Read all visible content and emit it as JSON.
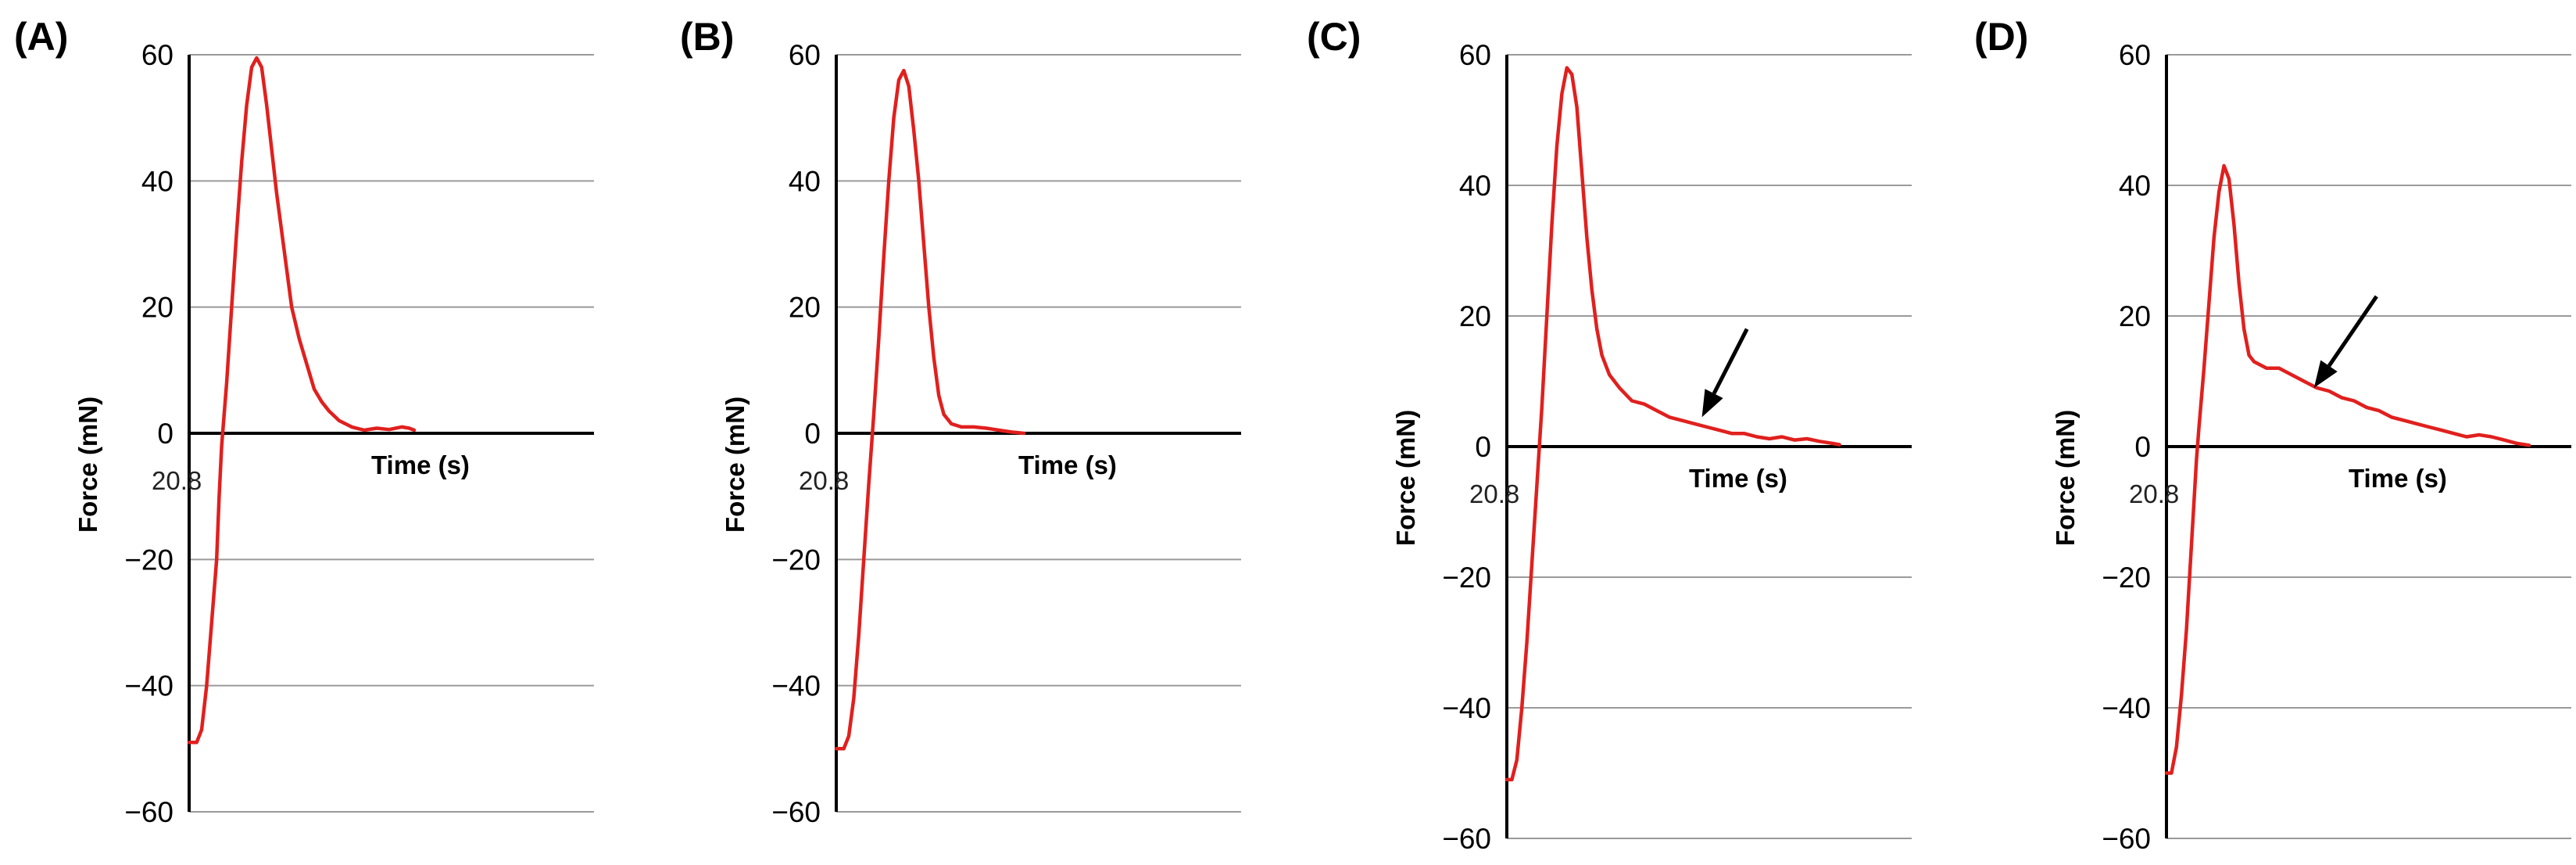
{
  "colors": {
    "series": "#e0201e",
    "grid": "#9a9a9a",
    "axis": "#000000",
    "arrow": "#000000"
  },
  "chart_data": [
    {
      "type": "line",
      "panel_label": "(A)",
      "xlabel": "Time (s)",
      "ylabel": "Force (mN)",
      "x_start_label": "20.8",
      "yticks": [
        60,
        40,
        20,
        0,
        -20,
        -40,
        -60
      ],
      "ytick_labels": [
        "60",
        "40",
        "20",
        "0",
        "−20",
        "−40",
        "−60"
      ],
      "ylim": [
        -60,
        60
      ],
      "grid": true,
      "legend": "none",
      "arrow": null,
      "series": [
        {
          "points": [
            [
              0,
              -49
            ],
            [
              0.03,
              -49
            ],
            [
              0.05,
              -47
            ],
            [
              0.07,
              -40
            ],
            [
              0.09,
              -30
            ],
            [
              0.11,
              -20
            ],
            [
              0.12,
              -10
            ],
            [
              0.13,
              -2
            ],
            [
              0.15,
              8
            ],
            [
              0.17,
              20
            ],
            [
              0.19,
              32
            ],
            [
              0.21,
              43
            ],
            [
              0.23,
              52
            ],
            [
              0.25,
              58
            ],
            [
              0.27,
              59.5
            ],
            [
              0.29,
              58
            ],
            [
              0.31,
              52
            ],
            [
              0.33,
              45
            ],
            [
              0.35,
              38
            ],
            [
              0.37,
              32
            ],
            [
              0.39,
              26
            ],
            [
              0.41,
              20
            ],
            [
              0.44,
              15
            ],
            [
              0.47,
              11
            ],
            [
              0.5,
              7
            ],
            [
              0.53,
              5
            ],
            [
              0.56,
              3.5
            ],
            [
              0.6,
              2
            ],
            [
              0.65,
              1
            ],
            [
              0.7,
              0.5
            ],
            [
              0.75,
              0.8
            ],
            [
              0.8,
              0.6
            ],
            [
              0.85,
              1
            ],
            [
              0.88,
              0.8
            ],
            [
              0.9,
              0.5
            ]
          ]
        }
      ]
    },
    {
      "type": "line",
      "panel_label": "(B)",
      "xlabel": "Time (s)",
      "ylabel": "Force (mN)",
      "x_start_label": "20.8",
      "yticks": [
        60,
        40,
        20,
        0,
        -20,
        -40,
        -60
      ],
      "ytick_labels": [
        "60",
        "40",
        "20",
        "0",
        "−20",
        "−40",
        "−60"
      ],
      "ylim": [
        -60,
        60
      ],
      "grid": true,
      "legend": "none",
      "arrow": null,
      "series": [
        {
          "points": [
            [
              0,
              -50
            ],
            [
              0.03,
              -50
            ],
            [
              0.05,
              -48
            ],
            [
              0.07,
              -42
            ],
            [
              0.09,
              -32
            ],
            [
              0.11,
              -20
            ],
            [
              0.13,
              -8
            ],
            [
              0.15,
              3
            ],
            [
              0.17,
              15
            ],
            [
              0.19,
              28
            ],
            [
              0.21,
              40
            ],
            [
              0.23,
              50
            ],
            [
              0.25,
              56
            ],
            [
              0.27,
              57.5
            ],
            [
              0.29,
              55
            ],
            [
              0.31,
              48
            ],
            [
              0.33,
              40
            ],
            [
              0.35,
              30
            ],
            [
              0.37,
              20
            ],
            [
              0.39,
              12
            ],
            [
              0.41,
              6
            ],
            [
              0.43,
              3
            ],
            [
              0.46,
              1.5
            ],
            [
              0.5,
              1
            ],
            [
              0.55,
              1
            ],
            [
              0.6,
              0.8
            ],
            [
              0.65,
              0.5
            ],
            [
              0.7,
              0.2
            ],
            [
              0.75,
              0
            ]
          ]
        }
      ]
    },
    {
      "type": "line",
      "panel_label": "(C)",
      "xlabel": "Time (s)",
      "ylabel": "Force (mN)",
      "x_start_label": "20.8",
      "yticks": [
        60,
        40,
        20,
        0,
        -20,
        -40,
        -60
      ],
      "ytick_labels": [
        "60",
        "40",
        "20",
        "0",
        "−20",
        "−40",
        "−60"
      ],
      "ylim": [
        -60,
        60
      ],
      "grid": true,
      "legend": "none",
      "arrow": {
        "from": [
          0.96,
          18
        ],
        "to": [
          0.78,
          4.5
        ]
      },
      "series": [
        {
          "points": [
            [
              0,
              -51
            ],
            [
              0.02,
              -51
            ],
            [
              0.04,
              -48
            ],
            [
              0.06,
              -40
            ],
            [
              0.08,
              -30
            ],
            [
              0.1,
              -18
            ],
            [
              0.12,
              -6
            ],
            [
              0.14,
              6
            ],
            [
              0.16,
              20
            ],
            [
              0.18,
              34
            ],
            [
              0.2,
              46
            ],
            [
              0.22,
              54
            ],
            [
              0.24,
              58
            ],
            [
              0.26,
              57
            ],
            [
              0.28,
              52
            ],
            [
              0.3,
              42
            ],
            [
              0.32,
              32
            ],
            [
              0.34,
              24
            ],
            [
              0.36,
              18
            ],
            [
              0.38,
              14
            ],
            [
              0.41,
              11
            ],
            [
              0.45,
              9
            ],
            [
              0.5,
              7
            ],
            [
              0.55,
              6.5
            ],
            [
              0.6,
              5.5
            ],
            [
              0.65,
              4.5
            ],
            [
              0.7,
              4
            ],
            [
              0.75,
              3.5
            ],
            [
              0.8,
              3
            ],
            [
              0.85,
              2.5
            ],
            [
              0.9,
              2
            ],
            [
              0.95,
              2
            ],
            [
              1.0,
              1.5
            ],
            [
              1.05,
              1.2
            ],
            [
              1.1,
              1.5
            ],
            [
              1.15,
              1
            ],
            [
              1.2,
              1.2
            ],
            [
              1.25,
              0.8
            ],
            [
              1.3,
              0.5
            ],
            [
              1.33,
              0.3
            ]
          ]
        }
      ]
    },
    {
      "type": "line",
      "panel_label": "(D)",
      "xlabel": "Time (s)",
      "ylabel": "Force (mN)",
      "x_start_label": "20.8",
      "yticks": [
        60,
        40,
        20,
        0,
        -20,
        -40,
        -60
      ],
      "ytick_labels": [
        "60",
        "40",
        "20",
        "0",
        "−20",
        "−40",
        "−60"
      ],
      "ylim": [
        -60,
        60
      ],
      "grid": true,
      "legend": "none",
      "arrow": {
        "from": [
          0.84,
          23
        ],
        "to": [
          0.59,
          9
        ]
      },
      "series": [
        {
          "points": [
            [
              0,
              -50
            ],
            [
              0.02,
              -50
            ],
            [
              0.04,
              -46
            ],
            [
              0.06,
              -38
            ],
            [
              0.08,
              -28
            ],
            [
              0.1,
              -15
            ],
            [
              0.12,
              -2
            ],
            [
              0.13,
              3
            ],
            [
              0.15,
              12
            ],
            [
              0.17,
              22
            ],
            [
              0.19,
              32
            ],
            [
              0.21,
              39
            ],
            [
              0.23,
              43
            ],
            [
              0.25,
              41
            ],
            [
              0.27,
              34
            ],
            [
              0.29,
              25
            ],
            [
              0.31,
              18
            ],
            [
              0.33,
              14
            ],
            [
              0.35,
              13
            ],
            [
              0.4,
              12
            ],
            [
              0.45,
              12
            ],
            [
              0.5,
              11
            ],
            [
              0.55,
              10
            ],
            [
              0.6,
              9
            ],
            [
              0.65,
              8.5
            ],
            [
              0.7,
              7.5
            ],
            [
              0.75,
              7
            ],
            [
              0.8,
              6
            ],
            [
              0.85,
              5.5
            ],
            [
              0.9,
              4.5
            ],
            [
              0.95,
              4
            ],
            [
              1.0,
              3.5
            ],
            [
              1.05,
              3
            ],
            [
              1.1,
              2.5
            ],
            [
              1.15,
              2
            ],
            [
              1.2,
              1.5
            ],
            [
              1.25,
              1.8
            ],
            [
              1.3,
              1.5
            ],
            [
              1.35,
              1
            ],
            [
              1.4,
              0.5
            ],
            [
              1.45,
              0.2
            ]
          ]
        }
      ]
    }
  ]
}
